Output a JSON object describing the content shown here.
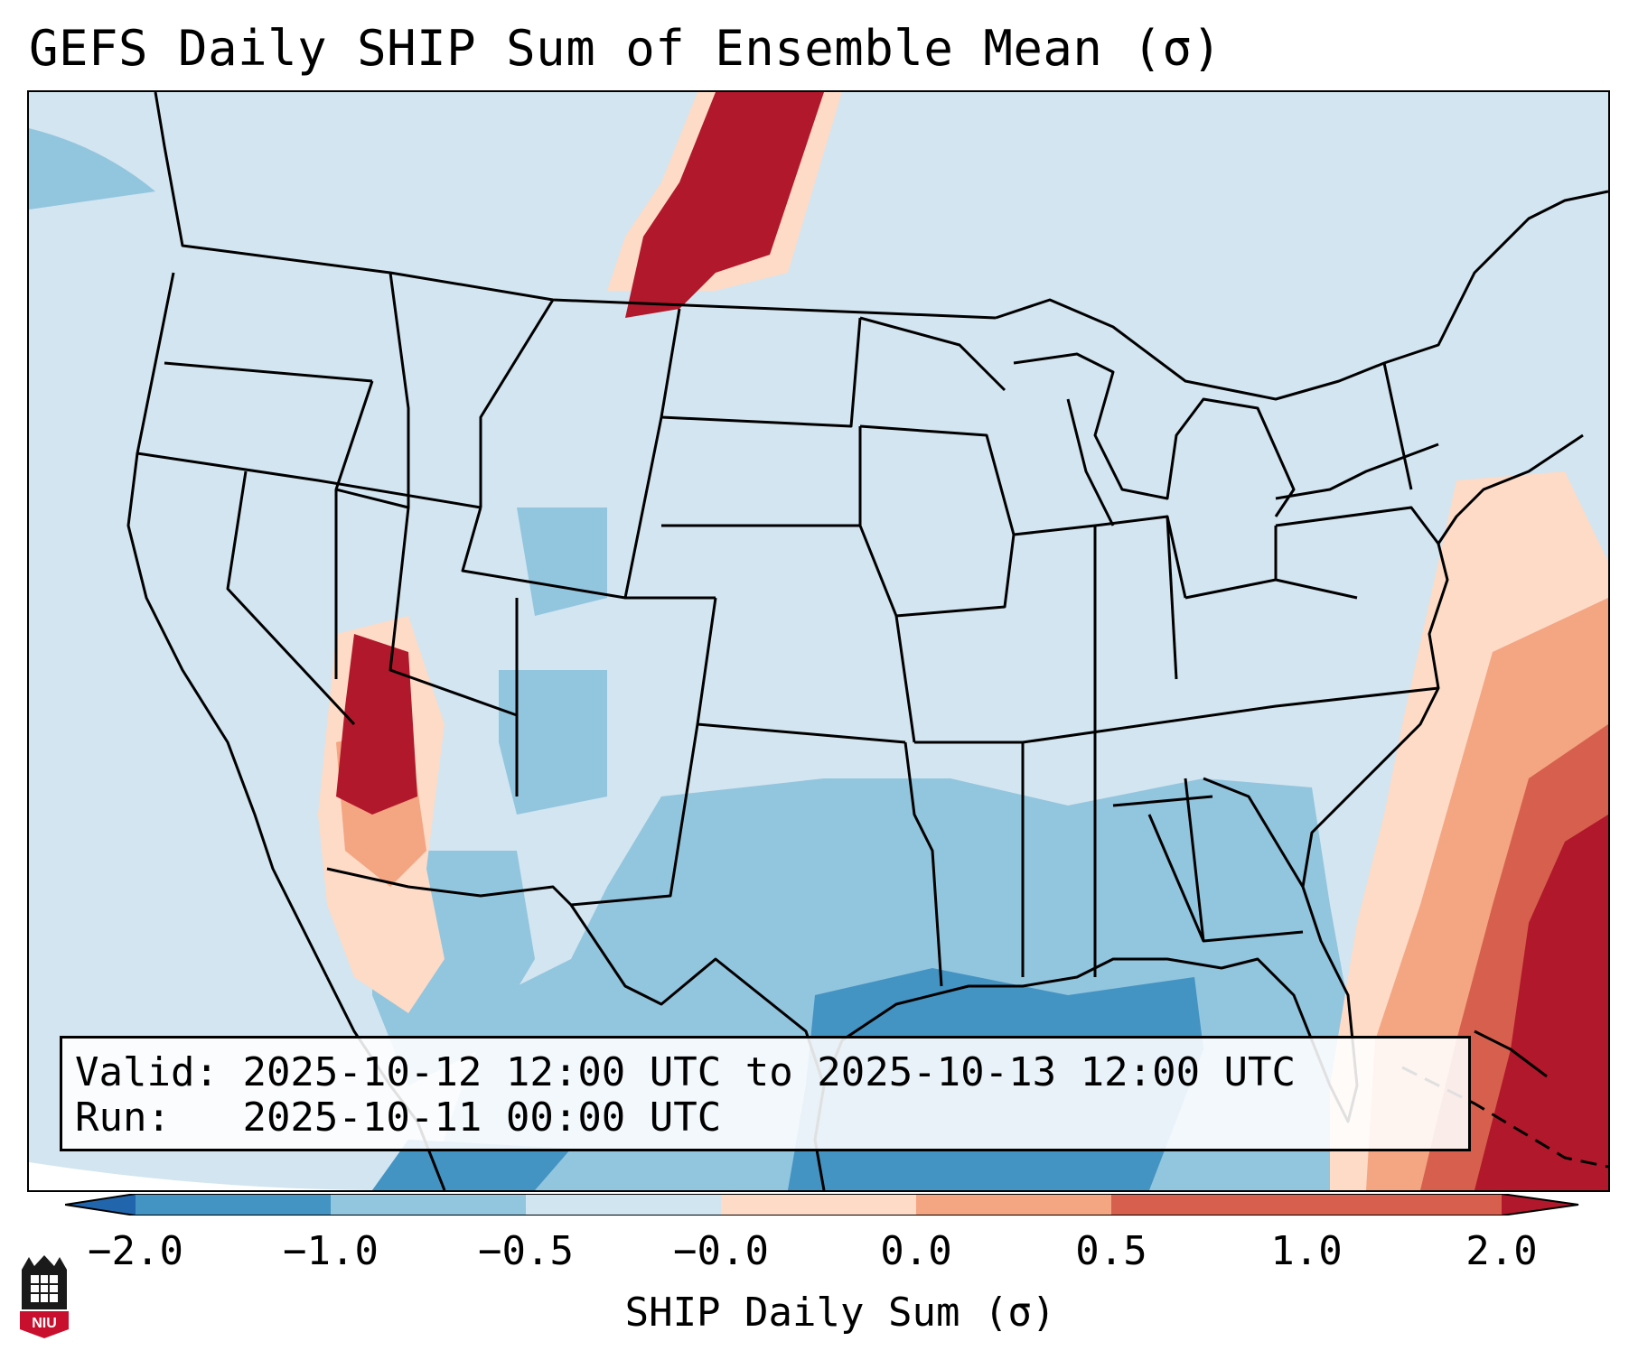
{
  "title": "GEFS Daily SHIP Sum of Ensemble Mean (σ)",
  "map": {
    "region": "Contiguous United States",
    "projection_description": "Lambert conformal",
    "background_color": "#d2e5f0",
    "anomaly_regions": [
      {
        "area": "Montana / Saskatchewan border",
        "category": "> 1.0",
        "color": "#b2182b"
      },
      {
        "area": "Southeast Arizona / Sonora",
        "category": "> 1.0",
        "color": "#b2182b"
      },
      {
        "area": "Western Atlantic / Bahamas",
        "category": "> 1.0",
        "color": "#b2182b"
      },
      {
        "area": "Gulf of Mexico",
        "category": "< -1.0",
        "color": "#4393c3"
      },
      {
        "area": "Texas / Southeast US",
        "category": "-1.0 to -0.5",
        "color": "#92c5de"
      }
    ]
  },
  "info": {
    "valid_label": "Valid:",
    "valid_value": "2025-10-12 12:00 UTC to 2025-10-13 12:00 UTC",
    "run_label": "Run:",
    "run_value": "2025-10-11 00:00 UTC"
  },
  "colorbar": {
    "label": "SHIP Daily Sum (σ)",
    "ticks": [
      "−2.0",
      "−1.0",
      "−0.5",
      "−0.0",
      "0.0",
      "0.5",
      "1.0",
      "2.0"
    ],
    "colors": [
      "#2166ac",
      "#4393c3",
      "#92c5de",
      "#d1e5f0",
      "#fddbc7",
      "#f4a582",
      "#d6604d",
      "#b2182b"
    ]
  },
  "logo": {
    "text": "NIU",
    "color": "#c8102e"
  }
}
